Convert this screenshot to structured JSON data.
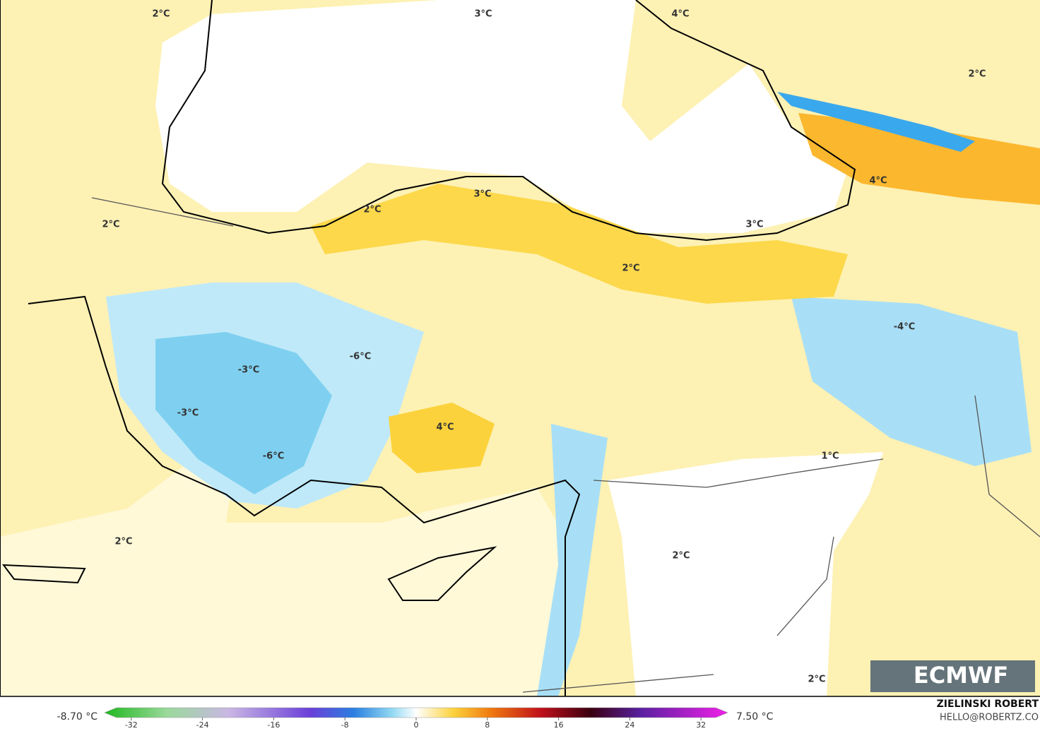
{
  "map": {
    "contour_labels": [
      "2°C",
      "3°C",
      "4°C",
      "2°C",
      "2°C",
      "3°C",
      "2°C",
      "4°C",
      "3°C",
      "2°C",
      "-4°C",
      "-6°C",
      "-3°C",
      "-3°C",
      "4°C",
      "-6°C",
      "1°C",
      "2°C",
      "2°C",
      "2°C"
    ],
    "colorbar": {
      "min_label": "-8.70 °C",
      "max_label": "7.50 °C",
      "lim": [
        -35,
        35
      ],
      "ticks": [
        -32,
        -24,
        -16,
        -8,
        0,
        8,
        16,
        24,
        32
      ]
    },
    "logo": "ECMWF",
    "author": "ZIELINSKI ROBERT",
    "contact": "HELLO@ROBERTZ.CO"
  }
}
